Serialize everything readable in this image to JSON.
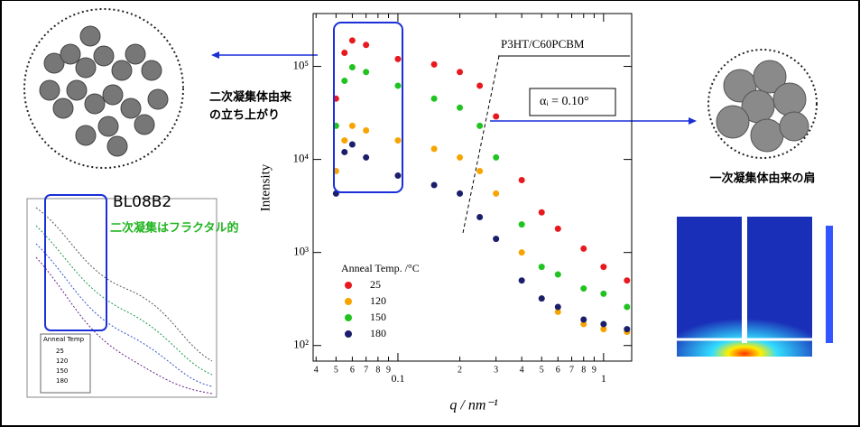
{
  "chart_data": {
    "type": "scatter",
    "x_label": "q / nm⁻¹",
    "y_label": "Intensity",
    "legend_title": "Anneal Temp. /°C",
    "annotations": [
      "P3HT/C60PCBM",
      "αᵢ = 0.10°"
    ],
    "log_x": true,
    "log_y": true,
    "legend": "lower left",
    "x": [
      0.05,
      0.055,
      0.06,
      0.07,
      0.1,
      0.15,
      0.2,
      0.25,
      0.3,
      0.4,
      0.5,
      0.6,
      0.8,
      1.0,
      1.3
    ],
    "series": [
      {
        "name": "25",
        "color": "#e8191e",
        "values": [
          45000,
          140000,
          190000,
          170000,
          120000,
          105000,
          87000,
          62000,
          29000,
          6000,
          2700,
          1800,
          1100,
          700,
          500
        ]
      },
      {
        "name": "120",
        "color": "#f7a400",
        "values": [
          7500,
          16000,
          23000,
          20500,
          16000,
          13000,
          10500,
          7500,
          4300,
          1000,
          320,
          230,
          170,
          150,
          140
        ]
      },
      {
        "name": "150",
        "color": "#21c321",
        "values": [
          23000,
          70000,
          98000,
          87000,
          62000,
          45000,
          36000,
          23000,
          10500,
          2000,
          700,
          580,
          410,
          360,
          260
        ]
      },
      {
        "name": "180",
        "color": "#1b1f6b",
        "values": [
          4300,
          12000,
          14500,
          10500,
          6700,
          5300,
          4300,
          2400,
          1400,
          500,
          320,
          260,
          190,
          170,
          150
        ]
      }
    ],
    "xlim": [
      0.0387,
      1.37
    ],
    "ylim": [
      68,
      370000
    ],
    "xticks": [
      {
        "value": 0.04,
        "label": "4"
      },
      {
        "value": 0.05,
        "label": "5"
      },
      {
        "value": 0.06,
        "label": "6"
      },
      {
        "value": 0.07,
        "label": "7"
      },
      {
        "value": 0.08,
        "label": "8"
      },
      {
        "value": 0.09,
        "label": "9"
      },
      0.1,
      {
        "value": 0.2,
        "label": "2"
      },
      {
        "value": 0.3,
        "label": "3"
      },
      {
        "value": 0.4,
        "label": "4"
      },
      {
        "value": 0.5,
        "label": "5"
      },
      {
        "value": 0.6,
        "label": "6"
      },
      {
        "value": 0.7,
        "label": "7"
      },
      {
        "value": 0.8,
        "label": "8"
      },
      {
        "value": 0.9,
        "label": "9"
      },
      1
    ],
    "yticks": [
      {
        "value": 100,
        "label": "10²"
      },
      {
        "value": 1000,
        "label": "10³"
      },
      {
        "value": 10000,
        "label": "10⁴"
      },
      {
        "value": 100000,
        "label": "10⁵"
      }
    ]
  },
  "annotations": {
    "secondary_rise": [
      "二次凝集体由来",
      "の立ち上がり"
    ],
    "primary_shoulder": "一次凝集体由来の肩",
    "beamline": "BL08B2",
    "fractal": "二次凝集はフラクタル的"
  },
  "inset": {
    "legend_title": "Anneal Temp",
    "legend": [
      "25",
      "120",
      "150",
      "180"
    ]
  }
}
